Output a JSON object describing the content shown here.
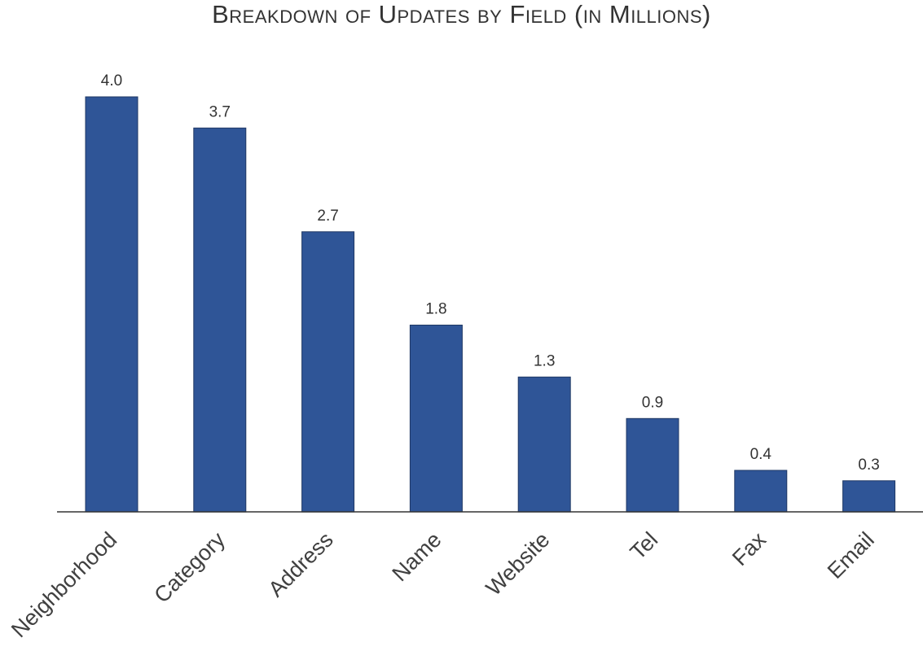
{
  "chart_data": {
    "type": "bar",
    "title": "Breakdown of Updates by Field (in Millions)",
    "categories": [
      "Neighborhood",
      "Category",
      "Address",
      "Name",
      "Website",
      "Tel",
      "Fax",
      "Email"
    ],
    "values": [
      4.0,
      3.7,
      2.7,
      1.8,
      1.3,
      0.9,
      0.4,
      0.3
    ],
    "data_labels": [
      "4.0",
      "3.7",
      "2.7",
      "1.8",
      "1.3",
      "0.9",
      "0.4",
      "0.3"
    ],
    "xlabel": "",
    "ylabel": "",
    "ylim": [
      0,
      4.0
    ],
    "grid": false,
    "legend": "none",
    "bar_color": "#2f5597"
  }
}
